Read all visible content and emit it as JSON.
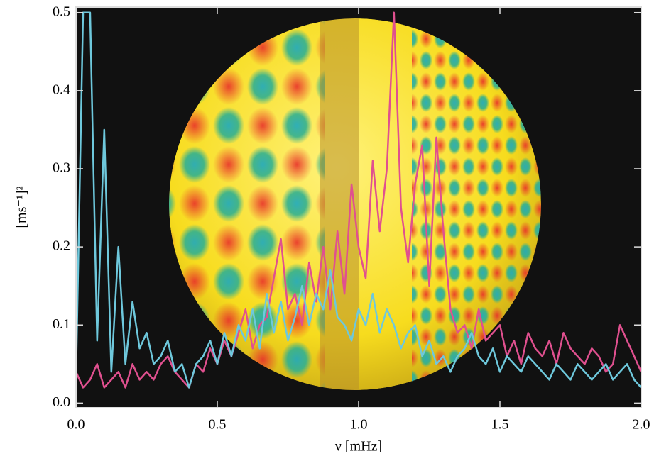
{
  "chart_data": {
    "type": "line",
    "xlabel": "ν [mHz]",
    "ylabel": "[ms⁻¹]²",
    "x": [
      0,
      0.025,
      0.05,
      0.075,
      0.1,
      0.125,
      0.15,
      0.175,
      0.2,
      0.225,
      0.25,
      0.275,
      0.3,
      0.325,
      0.35,
      0.375,
      0.4,
      0.425,
      0.45,
      0.475,
      0.5,
      0.525,
      0.55,
      0.575,
      0.6,
      0.625,
      0.65,
      0.675,
      0.7,
      0.725,
      0.75,
      0.775,
      0.8,
      0.825,
      0.85,
      0.875,
      0.9,
      0.925,
      0.95,
      0.975,
      1,
      1.025,
      1.05,
      1.075,
      1.1,
      1.125,
      1.15,
      1.175,
      1.2,
      1.225,
      1.25,
      1.275,
      1.3,
      1.325,
      1.35,
      1.375,
      1.4,
      1.425,
      1.45,
      1.475,
      1.5,
      1.525,
      1.55,
      1.575,
      1.6,
      1.625,
      1.65,
      1.675,
      1.7,
      1.725,
      1.75,
      1.775,
      1.8,
      1.825,
      1.85,
      1.875,
      1.9,
      1.925,
      1.95,
      1.975,
      2
    ],
    "series": [
      {
        "color": "#e0508f",
        "values": [
          0.04,
          0.02,
          0.03,
          0.05,
          0.02,
          0.03,
          0.04,
          0.02,
          0.05,
          0.03,
          0.04,
          0.03,
          0.05,
          0.06,
          0.04,
          0.03,
          0.02,
          0.05,
          0.04,
          0.07,
          0.05,
          0.08,
          0.06,
          0.09,
          0.12,
          0.07,
          0.1,
          0.11,
          0.16,
          0.21,
          0.12,
          0.14,
          0.1,
          0.18,
          0.13,
          0.2,
          0.12,
          0.22,
          0.14,
          0.28,
          0.2,
          0.16,
          0.31,
          0.22,
          0.3,
          0.5,
          0.25,
          0.18,
          0.28,
          0.33,
          0.15,
          0.34,
          0.22,
          0.12,
          0.09,
          0.1,
          0.07,
          0.12,
          0.08,
          0.09,
          0.1,
          0.06,
          0.08,
          0.05,
          0.09,
          0.07,
          0.06,
          0.08,
          0.05,
          0.09,
          0.07,
          0.06,
          0.05,
          0.07,
          0.06,
          0.04,
          0.05,
          0.1,
          0.08,
          0.06,
          0.04
        ]
      },
      {
        "color": "#6ec8dc",
        "values": [
          0.03,
          0.5,
          0.5,
          0.08,
          0.35,
          0.04,
          0.2,
          0.05,
          0.13,
          0.07,
          0.09,
          0.05,
          0.06,
          0.08,
          0.04,
          0.05,
          0.02,
          0.05,
          0.06,
          0.08,
          0.05,
          0.09,
          0.06,
          0.1,
          0.08,
          0.12,
          0.07,
          0.14,
          0.09,
          0.13,
          0.08,
          0.11,
          0.15,
          0.1,
          0.14,
          0.12,
          0.17,
          0.11,
          0.1,
          0.08,
          0.12,
          0.1,
          0.14,
          0.09,
          0.12,
          0.1,
          0.07,
          0.09,
          0.1,
          0.06,
          0.08,
          0.05,
          0.06,
          0.04,
          0.06,
          0.07,
          0.09,
          0.06,
          0.05,
          0.07,
          0.04,
          0.06,
          0.05,
          0.04,
          0.06,
          0.05,
          0.04,
          0.03,
          0.05,
          0.04,
          0.03,
          0.05,
          0.04,
          0.03,
          0.04,
          0.05,
          0.03,
          0.04,
          0.05,
          0.03,
          0.02
        ]
      }
    ],
    "xlim": [
      0,
      2
    ],
    "xticks": [
      {
        "value": 0,
        "label": "0.0"
      },
      0.5,
      {
        "value": 1,
        "label": "1.0"
      },
      1.5,
      {
        "value": 2,
        "label": "2.0"
      }
    ],
    "ylim": [
      -0.006,
      0.507
    ],
    "yticks": [
      {
        "value": 0,
        "label": "0.0"
      },
      0.1,
      0.2,
      0.3,
      0.4,
      0.5
    ],
    "background": "#111111"
  }
}
